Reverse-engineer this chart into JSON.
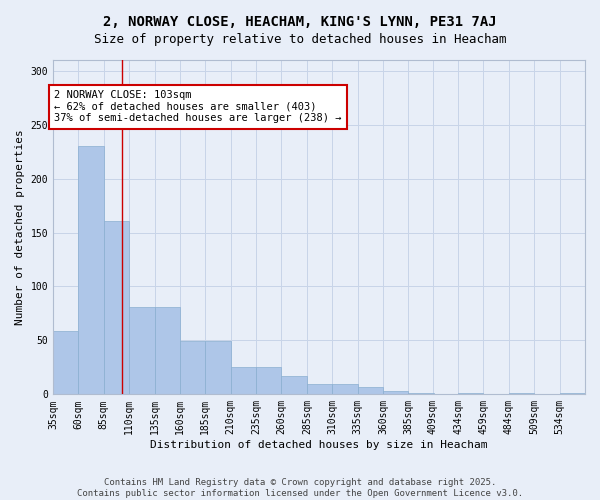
{
  "title_line1": "2, NORWAY CLOSE, HEACHAM, KING'S LYNN, PE31 7AJ",
  "title_line2": "Size of property relative to detached houses in Heacham",
  "xlabel": "Distribution of detached houses by size in Heacham",
  "ylabel": "Number of detached properties",
  "bar_values": [
    59,
    230,
    161,
    81,
    81,
    49,
    49,
    25,
    25,
    17,
    10,
    10,
    7,
    3,
    1,
    0,
    1,
    0,
    1,
    0,
    1
  ],
  "bin_edges": [
    35,
    60,
    85,
    110,
    135,
    160,
    185,
    210,
    235,
    260,
    285,
    310,
    335,
    360,
    385,
    409,
    434,
    459,
    484,
    509,
    534
  ],
  "tick_labels": [
    "35sqm",
    "60sqm",
    "85sqm",
    "110sqm",
    "135sqm",
    "160sqm",
    "185sqm",
    "210sqm",
    "235sqm",
    "260sqm",
    "285sqm",
    "310sqm",
    "335sqm",
    "360sqm",
    "385sqm",
    "409sqm",
    "434sqm",
    "459sqm",
    "484sqm",
    "509sqm",
    "534sqm"
  ],
  "bar_color": "#aec6e8",
  "bar_edge_color": "#8aafd0",
  "grid_color": "#c8d4e8",
  "background_color": "#e8eef8",
  "vline_x": 103,
  "vline_color": "#cc0000",
  "annotation_text": "2 NORWAY CLOSE: 103sqm\n← 62% of detached houses are smaller (403)\n37% of semi-detached houses are larger (238) →",
  "annotation_box_color": "#ffffff",
  "annotation_border_color": "#cc0000",
  "ylim": [
    0,
    310
  ],
  "yticks": [
    0,
    50,
    100,
    150,
    200,
    250,
    300
  ],
  "footer_text": "Contains HM Land Registry data © Crown copyright and database right 2025.\nContains public sector information licensed under the Open Government Licence v3.0.",
  "title_fontsize": 10,
  "subtitle_fontsize": 9,
  "axis_label_fontsize": 8,
  "tick_fontsize": 7,
  "annotation_fontsize": 7.5,
  "footer_fontsize": 6.5
}
